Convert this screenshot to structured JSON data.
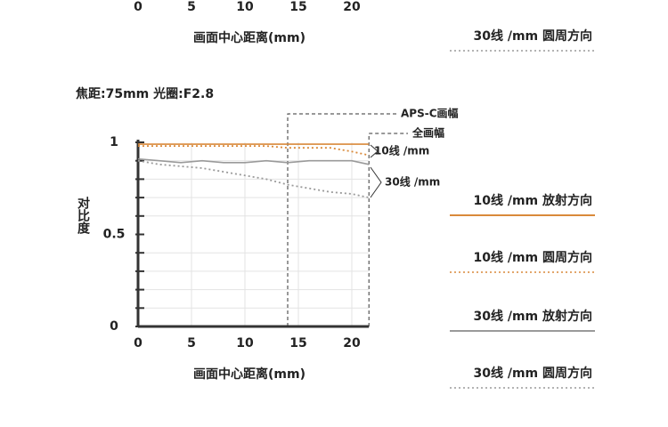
{
  "chart_data": [
    {
      "type": "line",
      "xlabel": "画面中心距离(mm)",
      "xlim": [
        0,
        21.6
      ],
      "xticks": [
        0,
        5,
        10,
        15,
        20
      ],
      "series": [
        {
          "name": "30线 /mm 圆周方向",
          "color": "#9a9a9a",
          "style": "dotted"
        }
      ]
    },
    {
      "type": "line",
      "title": "焦距:75mm 光圈:F2.8",
      "xlabel": "画面中心距离(mm)",
      "ylabel": "对比度",
      "xlim": [
        0,
        21.6
      ],
      "xticks": [
        0,
        5,
        10,
        15,
        20
      ],
      "ylim": [
        0,
        1
      ],
      "yticks": [
        0,
        0.5,
        1
      ],
      "yticks_minor": [
        0.1,
        0.2,
        0.3,
        0.4,
        0.6,
        0.7,
        0.8,
        0.9
      ],
      "grid": true,
      "x": [
        0,
        2,
        4,
        6,
        8,
        10,
        12,
        14,
        16,
        18,
        20,
        21.6
      ],
      "series": [
        {
          "name": "10线 /mm 放射方向",
          "color": "#d9893a",
          "style": "solid",
          "values": [
            0.99,
            0.99,
            0.99,
            0.99,
            0.99,
            0.99,
            0.99,
            0.99,
            0.99,
            0.99,
            0.99,
            0.99
          ]
        },
        {
          "name": "10线 /mm 圆周方向",
          "color": "#d9893a",
          "style": "dotted",
          "values": [
            0.98,
            0.98,
            0.98,
            0.98,
            0.98,
            0.98,
            0.98,
            0.97,
            0.97,
            0.97,
            0.95,
            0.93
          ]
        },
        {
          "name": "30线 /mm 放射方向",
          "color": "#9a9a9a",
          "style": "solid",
          "values": [
            0.91,
            0.9,
            0.89,
            0.9,
            0.89,
            0.89,
            0.9,
            0.89,
            0.9,
            0.9,
            0.9,
            0.88
          ]
        },
        {
          "name": "30线 /mm 圆周方向",
          "color": "#9a9a9a",
          "style": "dotted",
          "values": [
            0.9,
            0.88,
            0.87,
            0.86,
            0.84,
            0.82,
            0.8,
            0.77,
            0.75,
            0.73,
            0.72,
            0.7
          ]
        }
      ],
      "annotations": [
        {
          "label": "APS-C画幅",
          "x": 14
        },
        {
          "label": "全画幅",
          "x": 21.6
        }
      ],
      "curve_labels": [
        "10线 /mm",
        "30线 /mm"
      ]
    }
  ]
}
